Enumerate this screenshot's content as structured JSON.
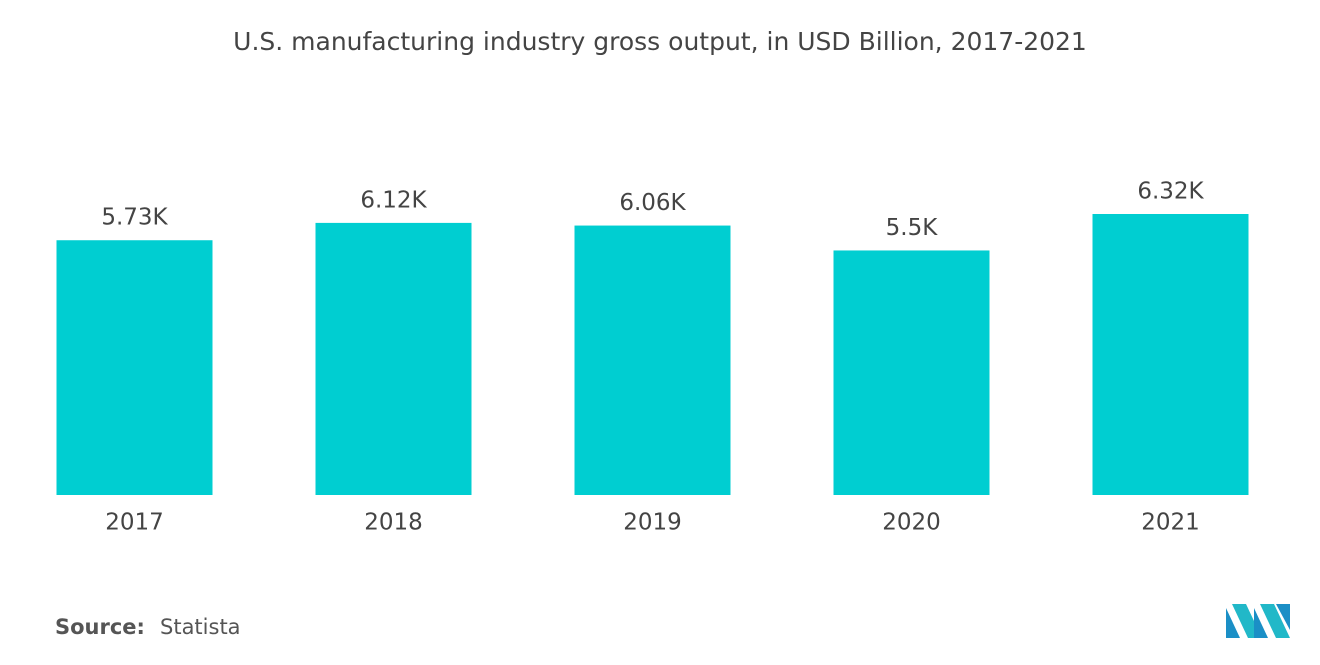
{
  "chart_data": {
    "type": "bar",
    "title": "U.S. manufacturing industry gross output, in USD Billion, 2017-2021",
    "categories": [
      "2017",
      "2018",
      "2019",
      "2020",
      "2021"
    ],
    "values": [
      5730,
      6120,
      6060,
      5500,
      6320
    ],
    "value_labels": [
      "5.73K",
      "6.12K",
      "6.06K",
      "5.5K",
      "6.32K"
    ],
    "color": "#00ced1"
  },
  "source_label": "Source:",
  "source": "Statista"
}
